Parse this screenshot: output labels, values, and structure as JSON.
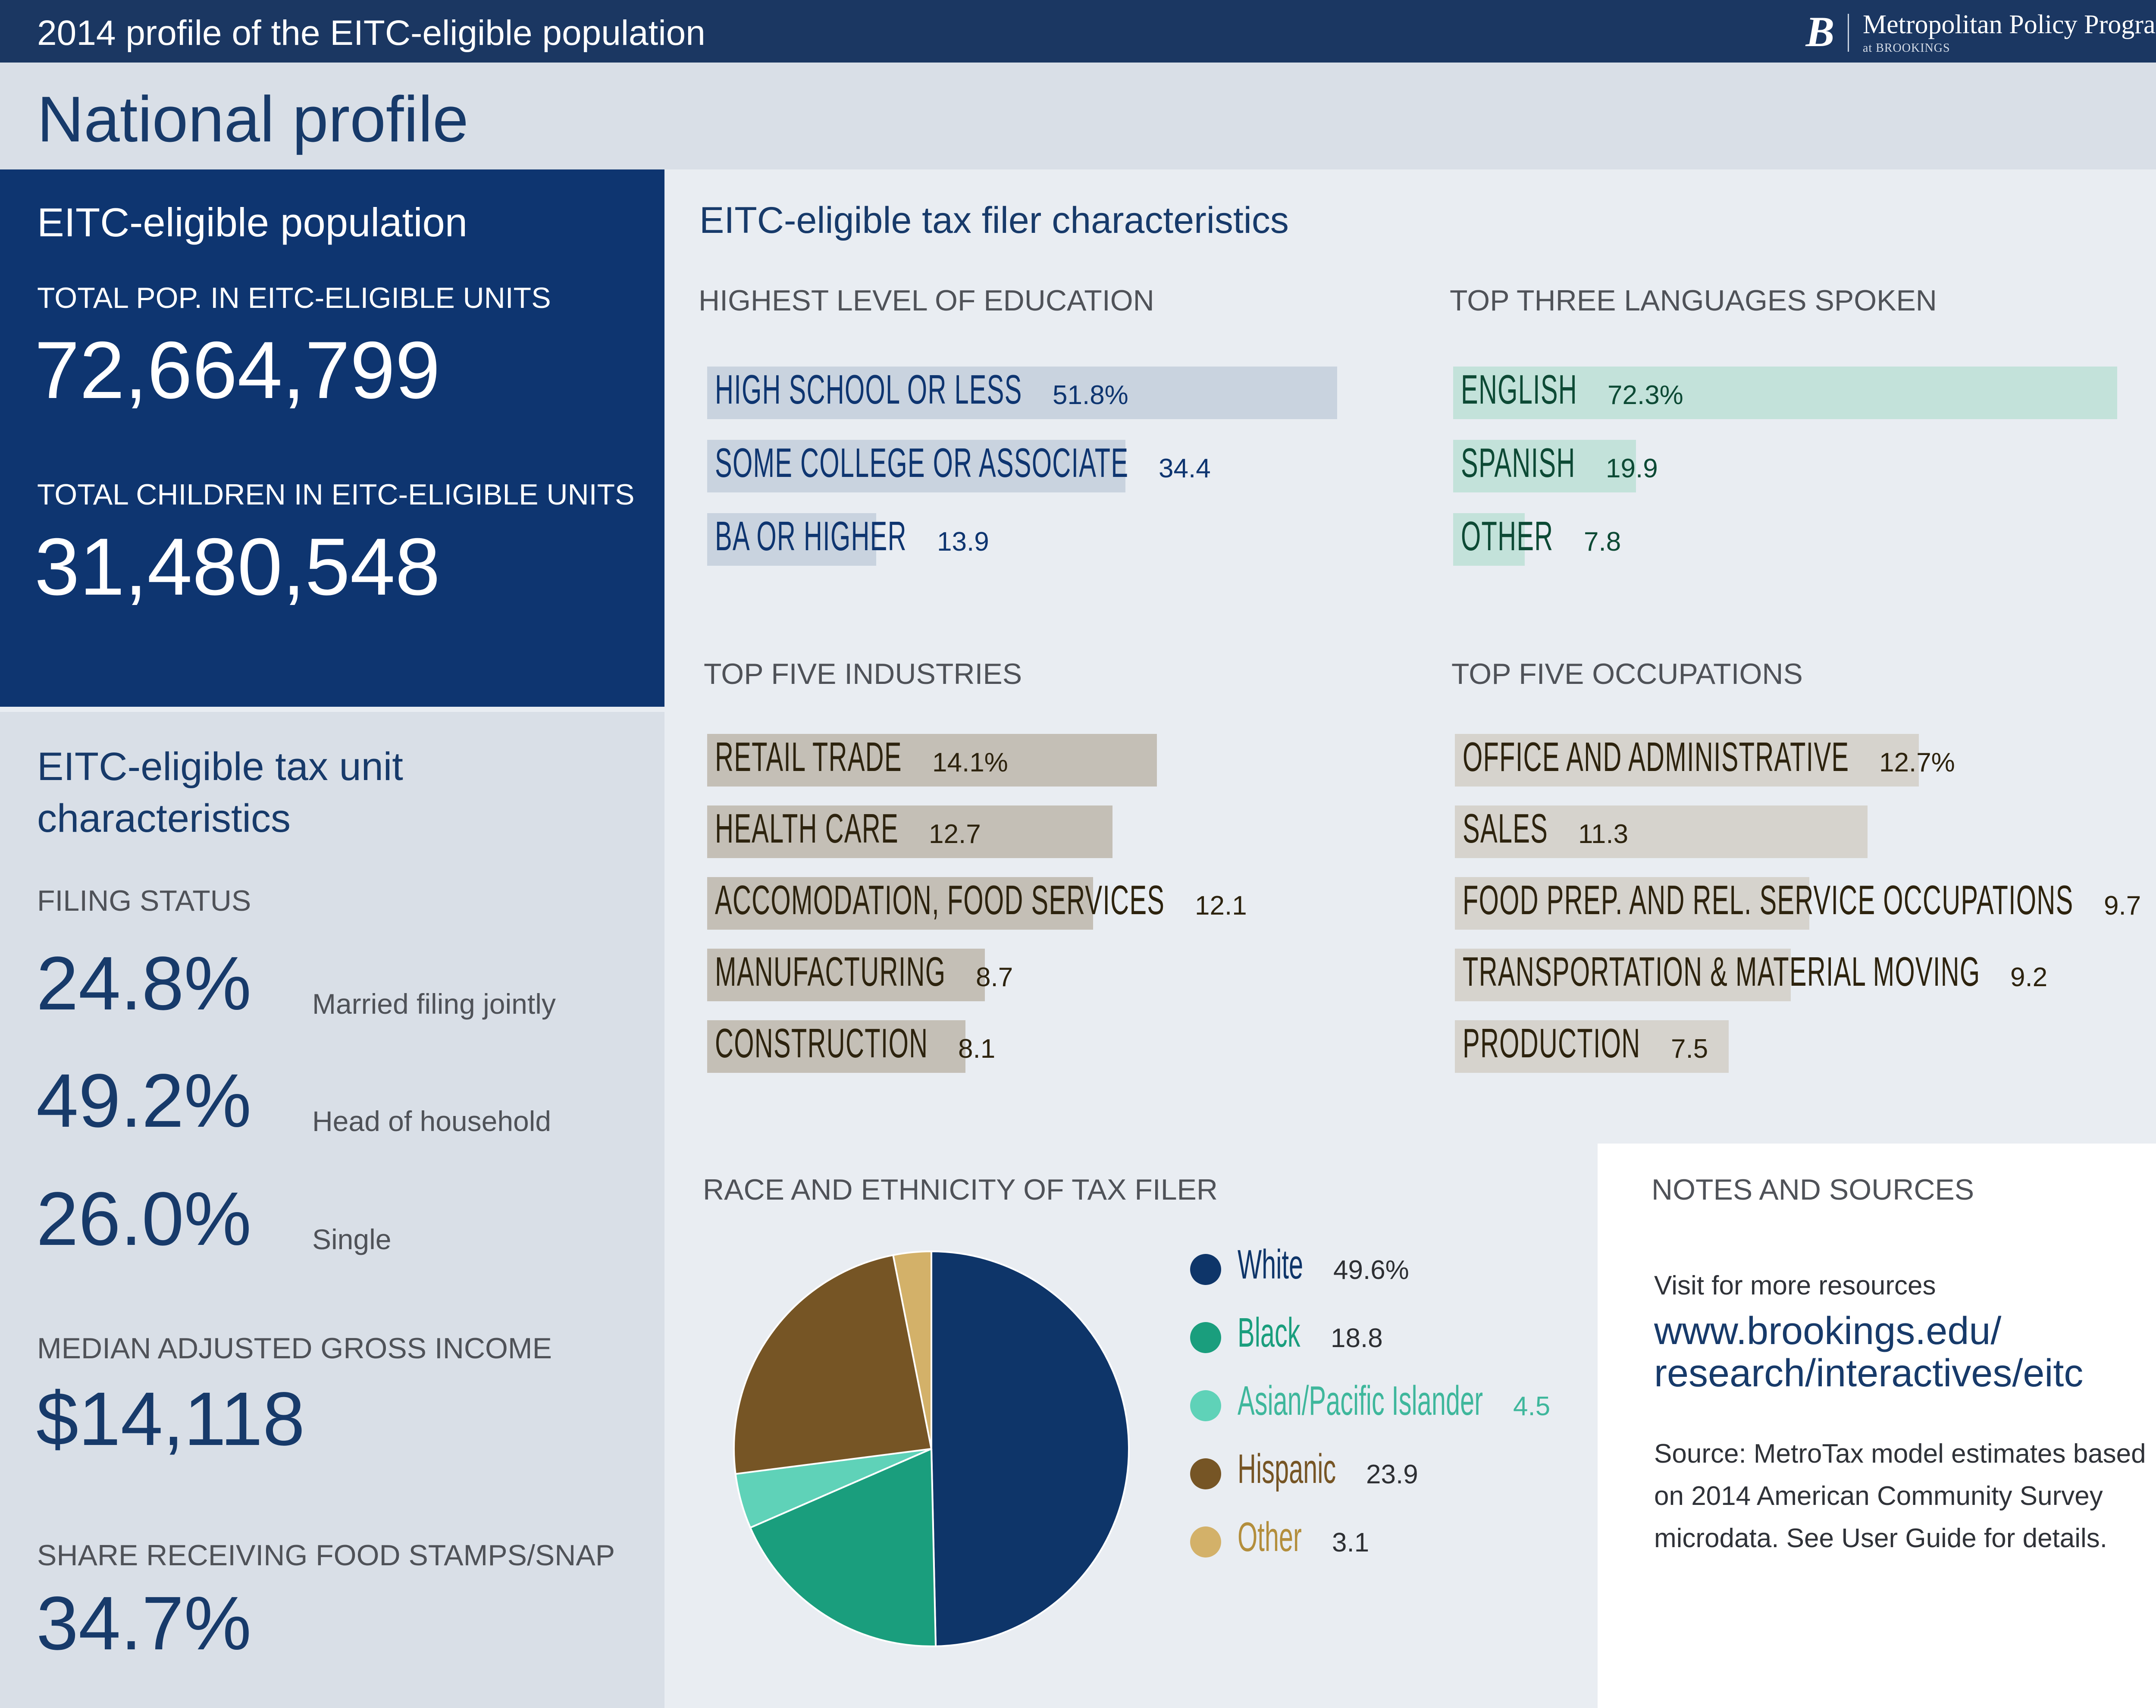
{
  "header": {
    "title": "2014 profile of the EITC-eligible population",
    "logo_mark": "B",
    "logo_name": "Metropolitan Policy Program",
    "logo_sub": "at BROOKINGS"
  },
  "profile_title": "National profile",
  "population": {
    "heading": "EITC-eligible population",
    "total_pop_label": "TOTAL POP. IN EITC-ELIGIBLE UNITS",
    "total_pop_value": "72,664,799",
    "total_children_label": "TOTAL CHILDREN IN EITC-ELIGIBLE UNITS",
    "total_children_value": "31,480,548"
  },
  "tax_unit": {
    "heading_line1": "EITC-eligible tax unit",
    "heading_line2": "characteristics",
    "filing_status_label": "FILING STATUS",
    "filing": [
      {
        "value": "24.8%",
        "label": "Married filing jointly"
      },
      {
        "value": "49.2%",
        "label": "Head of household"
      },
      {
        "value": "26.0%",
        "label": "Single"
      }
    ],
    "agi_label": "MEDIAN ADJUSTED GROSS INCOME",
    "agi_value": "$14,118",
    "snap_label": "SHARE RECEIVING FOOD STAMPS/SNAP",
    "snap_value": "34.7%"
  },
  "filer_heading": "EITC-eligible tax filer characteristics",
  "colors": {
    "navy": "#0e3570",
    "edu_bar": "#c9d3df",
    "lang_bar": "#c3e2da",
    "lang_text": "#0d4a35",
    "ind_bar": "#c4bfb6",
    "occ_bar": "#d6d3cd",
    "ind_text": "#2d230e",
    "pie_white": "#0e3569",
    "pie_black": "#1a9e7d",
    "pie_asian": "#5fd2b8",
    "pie_hispanic": "#765525",
    "pie_other": "#d3b169"
  },
  "chart_data": [
    {
      "type": "bar",
      "title": "HIGHEST LEVEL OF EDUCATION",
      "categories": [
        "HIGH SCHOOL OR LESS",
        "SOME COLLEGE OR ASSOCIATE",
        "BA OR HIGHER"
      ],
      "values": [
        51.8,
        34.4,
        13.9
      ],
      "labels": [
        "51.8%",
        "34.4",
        "13.9"
      ]
    },
    {
      "type": "bar",
      "title": "TOP THREE LANGUAGES SPOKEN",
      "categories": [
        "ENGLISH",
        "SPANISH",
        "OTHER"
      ],
      "values": [
        72.3,
        19.9,
        7.8
      ],
      "labels": [
        "72.3%",
        "19.9",
        "7.8"
      ]
    },
    {
      "type": "bar",
      "title": "TOP FIVE INDUSTRIES",
      "categories": [
        "RETAIL TRADE",
        "HEALTH CARE",
        "ACCOMODATION, FOOD SERVICES",
        "MANUFACTURING",
        "CONSTRUCTION"
      ],
      "values": [
        14.1,
        12.7,
        12.1,
        8.7,
        8.1
      ],
      "labels": [
        "14.1%",
        "12.7",
        "12.1",
        "8.7",
        "8.1"
      ]
    },
    {
      "type": "bar",
      "title": "TOP FIVE OCCUPATIONS",
      "categories": [
        "OFFICE AND ADMINISTRATIVE",
        "SALES",
        "FOOD PREP. AND REL. SERVICE OCCUPATIONS",
        "TRANSPORTATION & MATERIAL MOVING",
        "PRODUCTION"
      ],
      "values": [
        12.7,
        11.3,
        9.7,
        9.2,
        7.5
      ],
      "labels": [
        "12.7%",
        "11.3",
        "9.7",
        "9.2",
        "7.5"
      ]
    },
    {
      "type": "pie",
      "title": "RACE AND ETHNICITY OF TAX FILER",
      "categories": [
        "White",
        "Black",
        "Asian/Pacific Islander",
        "Hispanic",
        "Other"
      ],
      "values": [
        49.6,
        18.8,
        4.5,
        23.9,
        3.1
      ],
      "labels": [
        "49.6%",
        "18.8",
        "4.5",
        "23.9",
        "3.1"
      ]
    }
  ],
  "notes": {
    "heading": "NOTES AND SOURCES",
    "visit": "Visit for more resources",
    "link_line1": "www.brookings.edu/",
    "link_line2": "research/interactives/eitc",
    "source_line1": "Source: MetroTax model estimates based",
    "source_line2": "on 2014 American Community Survey",
    "source_line3": "microdata. See User Guide for details."
  }
}
